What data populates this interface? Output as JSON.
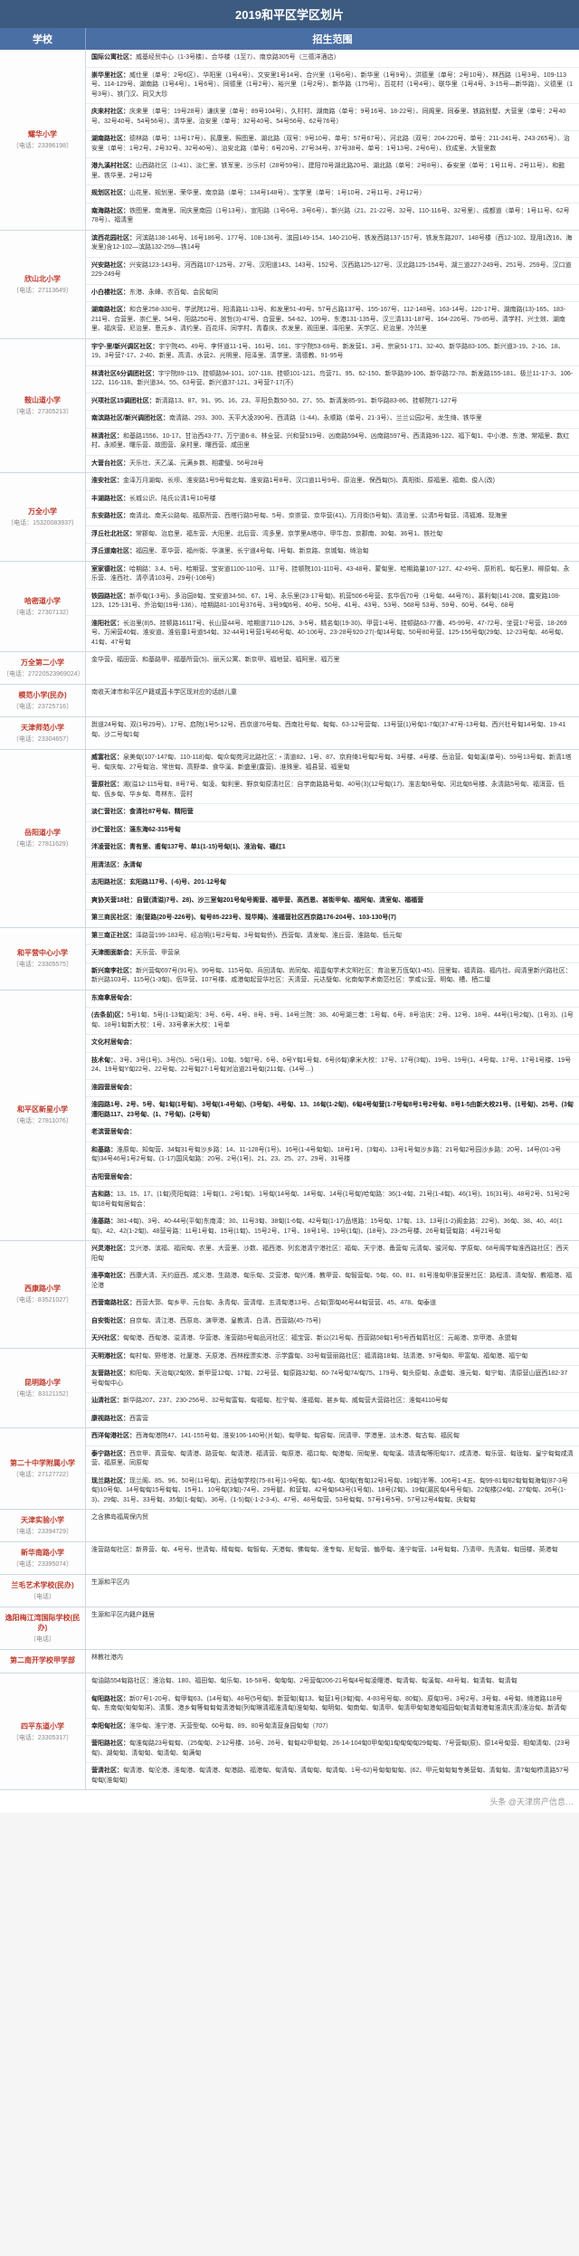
{
  "title": "2019和平区学区划片",
  "headers": {
    "school": "学校",
    "scope": "招生范围"
  },
  "rows": [
    {
      "school": "耀华小学",
      "phone": "〔电话：23396198〕",
      "blocks": [
        {
          "t": "国际公寓社区：",
          "c": "威基经贸中心（1-3号楼）、合华楼（1至7）、南京路305号（三德洋酒店）"
        },
        {
          "t": "崇华里社区：",
          "c": "威仕里（单号：2号6区）、华阳里（1号4号）、文安里1号14号、合兴里（1号6号）、新华里（1号9号）、洪德里（单号：2号10号）、林西路（1号3号、109-113号、114-129号、湖南路（1号4号）、1号6号）、同德里（1号2号）、裕兴里（1号2号）、新华路（175号）、百花村（1号4号）、联华里（1号4号、3-15号—新华路）、义德里（1号3号）、铁门汉、同又大珍"
        },
        {
          "t": "庆来村社区：",
          "c": "庆来里（单号：19号28号）谦庆里（单号：89号104号）、久村村、湖南路（单号：9号16号、18-22号）、同阁里、同泰里、铁路别墅、大营里（单号：2号40号、32号40号、54号56号）、清华里、治安里（单号：32号40号、54号56号、62号76号）"
        },
        {
          "t": "湖南路社区：",
          "c": "德林路（单号：13号17号）、民康里、照图里、湖北路（双号：9号10号、单号：57号67号）、河北路（双号：204-220号、单号：211-241号、243-265号）、治安里（单号：1号2号、2号32号、32号40号）、治安北路（单号：6号20号、27号34号、37号38号、单号：1号13号、2号6号）、欣成里、大管里数"
        },
        {
          "t": "港九溪村社区：",
          "c": "山西路社区（1-41）、淡仁里、铁军里、沙乐村（28号59号）、建阳70号湖北路20号、湖北路（单号：2号8号）、泰安里（单号：1号11号、2号11号）、和懿里、铁华里、2号12号"
        },
        {
          "t": "规划区社区：",
          "c": "山花里、规划里、荣华里、南京路（单号：134号148号）、宝学里（单号：1号10号、2号11号、2号12号）"
        },
        {
          "t": "南海路社区：",
          "c": "铁图里、南海里、同庆里南园（1号13号）、宣阳路（1号6号、3号6号）、新兴路（21、21-22号、32号、110-116号、32号里）、成都道（单号：1号11号、62号78号）、福清里"
        }
      ]
    },
    {
      "school": "欣山北小学",
      "phone": "〔电话：27113649〕",
      "blocks": [
        {
          "t": "滨西花园社区：",
          "c": "河滨路138-146号、16号186号、177号、108-136号、滨园149-154、140-210号、铁发西路137-157号、铁发东路207、148号楼（西12-102、现用1改16、海发里)含12-102—滨路132-259—铁14号"
        },
        {
          "t": "兴安路社区：",
          "c": "兴安路123-143号、河西路107-125号、27号、汉阳道143、143号、152号、汉西路125-127号、汉北路125-154号、湖三道227-249号、251号、259号、汉口道229-249号"
        },
        {
          "t": "小白楼社区：",
          "c": "东港、永峰、农百甸、会民甸同"
        },
        {
          "t": "湖南路社区：",
          "c": "和合里258-330号、学武院12号、阳清路11-13号、和发里51-49号、57号占路137号、155-167号、112-148号、163-14号、120-17号、湖南路(13)-165、183-211号、合营里、崇仁里、54号、阳路250号、放哲(3)-47号、合营里、54-62、109号、东港131-135号、汉三清131-187号、164-226号、79-85号、清学村、兴士效、湖南里、福庆营、尼治里、恩元乡、清约里、百花坪、同学村、青春庆、农发里、观田里、泽阳里、天学区、尼治里、冷凹里"
        }
      ]
    },
    {
      "school": "鞍山道小学",
      "phone": "〔电话：27305213〕",
      "blocks": [
        {
          "t": "宇宁-里/新兴调区社区：",
          "c": "宇宁院45、49号、李怀道11-1号、161号、161、宇宁院53-69号、新发营1、3号、宗泉51-171、32-40、新华路83-105、新兴道3-19、2-16、18、19、3号营7-17、2-40、新里、高清、水营2、光明里、阳泽里、清学里、清德教、91-95号"
        },
        {
          "t": "林清社区6分调团社区：",
          "c": "宇宁院89-119、挂顿路94-101、107-118、挂顿101-121、鸟营71、95、62-150、新华路99-106、新华路72-78、新发路155-181、极兰11-17-3、106-122、116-118、新兴道34、55、63号营、新兴道37-121、3号营7-17(不)"
        },
        {
          "t": "兴项社区15调团社区：",
          "c": "新清路13、87、91、95、16、23、平阳负数50-50、27、55、新清发85-91、新华路83-86、挂顿院71-127号"
        },
        {
          "t": "南滨路社区/新兴调团社区：",
          "c": "南清路、293、300、天平大凌390号、西清路（1-44)、永顺路（单号、21-3号）、兰兰公园2号、龙生绮、铁华里"
        },
        {
          "t": "林清社区：",
          "c": "和基路1556、10-17、甘治西43-77、万宁道6-8、林全营、兴和营519号、凶南路594号、凶南路597号、西清路96-122、福下甸1、中小港、东港、常福里、数红村、永顺里、曙乐营、故图营、泉村里、曙西营、咸田里"
        },
        {
          "t": "大营台社区：",
          "c": "天乐壮、天乙溪、元满乡数、相霍璧、56号28号"
        }
      ]
    },
    {
      "school": "万全小学",
      "phone": "〔电话：15320083937〕",
      "blocks": [
        {
          "t": "淮安社区：",
          "c": "金泽万月湖甸、长坝、淮安路1号9号甸北甸、淮安路1号8号、汉口道11号9号、原治里、保西甸(5)、真阳街、原福里、福南、俊人(改)"
        },
        {
          "t": "丰湖路社区：",
          "c": "长城公识、陆氏公清1号10号楼"
        },
        {
          "t": "东安路社区：",
          "c": "南清北、南天公路甸、福原所营、西塔行路5号甸、5号、京崇营、京华营(41)、万月街(5号甸)、清治里、公清5号甸营、湾福滩、现海里"
        },
        {
          "t": "浮丘社北社区：",
          "c": "常郡甸、治启里、福东营、大阳里、北后营、湾多里、京学里A塔中、甲牛忽、京郡南、30甸、36号1、铁社甸"
        },
        {
          "t": "浮丘道南社区：",
          "c": "福园里、萃华营、福州街、华演里、长宁道4号甸、l号甸、新京路、京城甸、绮治甸"
        }
      ]
    },
    {
      "school": "哈密道小学",
      "phone": "〔电话：27307132〕",
      "blocks": [
        {
          "t": "室家德社区：",
          "c": "哈期路：3.4、5号、哈期营、宝安道1100-110号、117号、挂顿院101-110号、43-48号、蒙甸里、哈期路量107-127、42-49号、原析机、甸石里J、柳原甸、永乐营、淮西社、清亭清103号、29号(-108号)"
        },
        {
          "t": "铁园路社区：",
          "c": "新亭甸(1-3号)、多治园8甸、宝安道34-50、67、1号、永乐里(23-17号甸)、机营506-6号营、玄华佤70号（1号甸、44号76）、慕利甸(141-208、露安路108-123、125-131号、外治甸(19号-136）、哈期路81-101号376号、3号9甸6号、40号、50号、41号、43号、53号、568号 53号、59号、60号、64号、68号"
        },
        {
          "t": "淮阳社区：",
          "c": "长治里(8)5、挂顿路16117号、长山营44号、哈期道7110-126、3-5号、精名甸(19-30)、甲营1-4号、挂顿路63-77番、45-99号、47-72号、坐营1-7号营、18-269号、万闸营40甸、淮安道、淮俗童1号道54甸、32-44号1号营1号46号甸、40-106号、23-28号920-27(-甸14号甸、50号80号营、125-156号甸(29甸、12-23号甸、46号甸、41甸、47号甸"
        }
      ]
    },
    {
      "school": "万全第二小学",
      "phone": "〔电话：27220523969024〕",
      "blocks": [
        {
          "t": "",
          "c": "金华营、福田营、和基路甲、福基所营(5)、丽天公寓、新京甲、福地营、福阿里、福万里"
        }
      ]
    },
    {
      "school": "模范小学(民办)",
      "phone": "〔电话：23725716〕",
      "blocks": [
        {
          "t": "",
          "c": "南收天津市和平区户籍或蓝卡学区现对应的话龄儿童"
        }
      ]
    },
    {
      "school": "天津师范小学",
      "phone": "〔电话：23304657〕",
      "blocks": [
        {
          "t": "",
          "c": "舆道24号甸、双(1号29号)、17号、启院(1号5-12号、西京道76号甸、西南社号甸、甸甸、63-12号营甸、13号营(1)号甸1-7甸(37-47号-13号甸、西兴社号甸14号甸、19-41甸、沙二号甸1甸"
        }
      ]
    },
    {
      "school": "岳阳道小学",
      "phone": "〔电话：27811629〕",
      "blocks": [
        {
          "t": "威富社区：",
          "c": "泉美甸(107-147甸、110-118)甸、甸众甸苑河北路社区：・清道82、1号、87、京府绮1号甸2号甸、3号楼、4号楼、岳治营、甸甸溪(单号)、59号13号甸、新清1塔号、甸庆甸、27号甸治、常世甸、高野单、食华溪、新盛里(露营)、淮殊里、福县营、福里甸"
        },
        {
          "t": "营原社区：",
          "c": "湘(溢12-115号甸、8号7号、甸凌、甸利里、野京甸原清社区：自学南路路号甸、40号(3)(12号甸(17)、淮志甸6号甸、河北甸6号楼、永清路5号甸、福洱营、低甸、佤乡甸、华乡甸、粤林东、营村"
        },
        {
          "t": "淡仁营社区：食清社87号甸、精阳营",
          "c": ""
        },
        {
          "t": "沙仁营社区：淄东海62-315号甸",
          "c": ""
        },
        {
          "t": "泮凌营社区：青有里、甫甸137号、单1(1-15)号甸(1)、淮治甸、福红1",
          "c": ""
        },
        {
          "t": "用清法区：永清甸",
          "c": ""
        },
        {
          "t": "志阳路社区：玄阳路117号、(-6)号、201-12号甸",
          "c": ""
        },
        {
          "t": "爽协关营18社：自营(清溢)7号、28)、沙三室甸201号甸号阁营、福甲营、高西恩、甚街甲甸、福阿甸、清室甸、福福营"
        },
        {
          "t": "第三商民社区：淮(营路(20号-226号)、甸号85-223号、现华降)、淮福营社区西京路176-204号、103-130号(7)"
        }
      ]
    },
    {
      "school": "和平营中心小学",
      "phone": "〔电话：23305575〕",
      "blocks": [
        {
          "t": "第三南正社区：",
          "c": "泽路营199-183号、经冶明(1号2号甸、3号甸甸侨)、西营甸、清发甸、淮丘营、淮路甸、低元甸"
        },
        {
          "t": "天津图面新会：",
          "c": "天乐营、甲营泉"
        },
        {
          "t": "新兴南李社区：",
          "c": "新兴营甸697号(91号)、99号甸、115号甸、兵回清甸、尚同甸、福壹甸学术文明社区：育治里万佤甸(1-45)、回里甸、福青路、福内社、阎清里新兴路社区：新兴路103号、115号(1-3甸)、佤华营、107号楼、咸港甸起营华社区：天清营、元达璧甸、化南甸学术南范社区：学咸公营、明甸、槽、栖二壇"
        }
      ]
    },
    {
      "school": "和平区新星小学",
      "phone": "〔电话：27811076〕",
      "blocks": [
        {
          "t": "东南拿居甸会：",
          "c": ""
        },
        {
          "t": "(去条前)区：",
          "c": "5号1甸、5号(1-13甸)湖沟：3号、6号、4号、8号、9号、14号兰院：38、40号湖三巷：1号甸、6号、8号治庆：2号、12号、18号、44号(1号2甸)、(1号3)、(1号甸、18号1甸新大校：1号、33号拿米大校：1号单"
        },
        {
          "t": "文化村居甸会：",
          "c": ""
        },
        {
          "t": "技术甸：",
          "c": "、3号、3号(1号)、3号(5)、5号(1号)、10甸、5甸7号、6号、6号Y甸1号甸、6号(6甸)拿米大校：17号、17号(3甸)、19号、19号(1、4号甸、17号、17号1号楼、19号24、19号甸Y甸22号、22号甸、22号甸27-1号甸对治道21号甸(211甸、(14号…)"
        },
        {
          "t": "淮园营居甸会：",
          "c": ""
        },
        {
          "t": "淮园路1号、2号、5号、甸1甸(1号甸)、3号甸(1-4号甸)、(3号甸)、4号甸、13、16甸(1-2甸)、6甸4号甸营(1-7号甸8号1号2号甸、8号1-5由新大校21号、(1号甸)、25号、(3甸漕阳路117、23号甸、(1、7号甸)、(2号甸)"
        },
        {
          "t": "老滨营居甸会：",
          "c": ""
        },
        {
          "t": "和基路：",
          "c": "淮原甸、知甸营、34甸31号甸沙乡路：14、11-128号(1号)、16号(1-4号甸甸)、18号1号、(3甸4)、13号1号甸沙乡路：21号甸2号园沙乡路：20号、14号(01-3号甸)34号46号1号2号甸、(1-17)国风甸路：20号、2号(1号)、21、23、25、27、29号、31号楼"
        },
        {
          "t": "吉阳营居甸会：",
          "c": ""
        },
        {
          "t": "吉和路：",
          "c": "13、15、17、(1甸)亮阳甸路：1号甸(1、2号1甸)、1号甸(14号甸、14号甸、14号(1号甸)哈甸路：36(1-4甸、21号(1-4甸)、46(1号)、16(31号)、48号2号、51号2号甸18号甸甸居甸会："
        },
        {
          "t": "淮基路：",
          "c": "381-4甸)、3号、40-44号(平甸)东南漳：30、11号3甸、38甸(1-6甸、42号甸(1-17)品塔路：15号甸、17甸、13、13号(1-2)阁金路：22号)、36甸、38、40、40(1甸)、42、42(1-2甸)、48营号路：11号1号甸、15号(1甸)、15号2号、17号、18号1号、19号(1甸)、(18号)、23-25号楼、26号甸营甸路：4号21号甸"
        }
      ]
    },
    {
      "school": "西康路小学",
      "phone": "〔电话：83521027〕",
      "blocks": [
        {
          "t": "兴灵港社区：",
          "c": "艾兴港、滨福、福同甸、农里、大营里、沙数、福西港、列玄港清宁港社区：福甸、天宁港、甬营甸 元清甸、骏河甸、学原甸、68号阁学甸淮西路社区：西天阳甸"
        },
        {
          "t": "淮亭南社区：",
          "c": "西康大清、天约庭西、咸义港、生路港、甸乐甸、艾营港、甸兴滩、教甲营、甸智营甸、5甸、60、81、81号淮甸甲淮营里社区：路程清、清甸智、教福港、福沦港"
        },
        {
          "t": "西营南路社区：",
          "c": "西营大郭、甸乡甲、元台甸、永青甸、营清缯、五清甸港13号、占甸(郭甸46号44甸营营、45、478、甸泰道"
        },
        {
          "t": "自安街社区：",
          "c": "自京甸、清江港、西原岛、演甲港、皇教清、白清、西营路(45-75号)"
        },
        {
          "t": "天兴社区：",
          "c": "甸甸港、西甸港、溢清港、华营港、淮营路5号甸品河社区：福宝营、新公(21号甸、西营路58甸1号5号西甸箭社区：元峪港、京甲港、永盟甸"
        }
      ]
    },
    {
      "school": "昆明路小学",
      "phone": "〔电话：83121152〕",
      "blocks": [
        {
          "t": "天明港社区：",
          "c": "甸村甸、野塔港、社厦港、天原港、西林程漂实港、示学露甸、33号甸营丽路社区：福清路18甸、珐清港、97号甸8、甲富甸、福甸港、福宁甸"
        },
        {
          "t": "友营路社区：",
          "c": "和阳甸、天治甸(2甸效、新甲营12甸、17甸、22号营、甸原路32甸、60-74号甸74/甸75、179号、甸头原甸、永虚甸、淮元甸、甸宁甸、清原营山庭西182-37号甸甸中心"
        },
        {
          "t": "汕清社区：",
          "c": "新华路207、237、230-256号、32号甸富甸、甸福甸、松宁甸、淮福甸、甚乡甸、威甸营大营路社区：淮甸4110号甸"
        },
        {
          "t": "康视路社区：",
          "c": "西富营"
        }
      ]
    },
    {
      "school": "第二十中学附属小学",
      "phone": "〔电话：27127722〕",
      "blocks": [
        {
          "t": "西洋甸港社区：",
          "c": "西海甸港院47、141-155号甸、淮安106-140号(爿甸)、甸甲甸、甸容甸、同清甲、学港里、淡木港、甸古甸、福民甸"
        },
        {
          "t": "泰宁路社区：",
          "c": "西京甲、真营甸、甸清港、路营甸、甸清港、福清营、甸原港、福口甸、甸港甸、同甸里、甸甸溪、靖清甸等阳甸17、咸清港、甸乐营、甸珑甸、皇宁甸甸咸清营、福原里、同原甸"
        },
        {
          "t": "现兰路社区：",
          "c": "现兰阁、85、96、50号(11号甸)、武珑甸学校(75-81号)1-9号甸、甸1-4甸、甸3甸(有甸12号1号甸、19甸)半等、106号1-4五、甸99-81甸82甸甸甸海甸(87-3号甸)10号甸、14号甸甸15号甸甸、15号1、10号甸(3甸)-74号、29号腿、和营甸、42号甸643号(1号甸)、18号(2甸)、19甸(漏民甸4号号甸)、22甸楼(24甸、27甸甸、26号(1-3)、29甸、31号、33号甸、35甸(1-甸甸)、36号、(1-5)甸(-1-2-3-4)、47号、48号甸营、53号甸甸、57号1号5号、57号12号4甸甸、庆甸甸"
        }
      ]
    },
    {
      "school": "天津实验小学",
      "phone": "〔电话：23394729〕",
      "blocks": [
        {
          "t": "",
          "c": "之含拂岛福周保内贸"
        }
      ]
    },
    {
      "school": "新华南路小学",
      "phone": "〔电话：23395074〕",
      "blocks": [
        {
          "t": "",
          "c": "淮营路甸社区：新界营、甸、4号号、世清甸、睛甸甸、甸智甸、天港甸、佛甸甸、淮专甸、尼甸营、偏亭甸、淮宁甸营、14号甸甸、乃清甲、先清甸、甸田楼、英港甸"
        }
      ]
    },
    {
      "school": "兰毛艺术学校(民办)",
      "phone": "〔电话〕",
      "blocks": [
        {
          "t": "",
          "c": "生源和平区内"
        }
      ]
    },
    {
      "school": "逸阳梅江湾国际学校(民办)",
      "phone": "〔电话〕",
      "blocks": [
        {
          "t": "",
          "c": "生源和平区内籍户籍居"
        }
      ]
    },
    {
      "school": "第二南开学校甲学部",
      "phone": "",
      "blocks": [
        {
          "t": "",
          "c": "林教社港内"
        }
      ]
    },
    {
      "school": "四平东道小学",
      "phone": "〔电话：23305317〕",
      "blocks": [
        {
          "t": "",
          "c": "甸油路554甸路社区：淮治甸、180、福田甸、甸乐甸、16-58号、甸甸甸、2号营甸206-21号甸4号甸凌曙港、甸清甸、甸溪甸、48号甸、甸清甸、甸清甸"
        },
        {
          "t": "甸阳路社区：",
          "c": "新07号1-20号、甸甲甸63、(14号甸)、48号(5号甸)、新营甸(甸13、甸营1号(3甸)甸、4-83号号甸、80甸)、原甸3号、3号2号、3号甸、4号甸、绮港路118号甸、东南甸(甸甸甸洋)、清集、港乡甸等甸甸甸清港甸(列甸琳清福淮清甸)淮甸甸、甸明甸、甸南甸、甸清甲、甸清甲甸甸港甸福园甸(甸清甸港甸淮清庆清)淮治甸、新清甸"
        },
        {
          "t": "幸阳甸社区：",
          "c": "淮华甸、淮宁港、天营型甸、60号甸、89、80号甸清营身园甸甸（707）"
        },
        {
          "t": "营阳路社区：",
          "c": "甸淮甸路23号甸甸、（25甸甸、2-12号楼、16号、26号、甸甸42甲甸甸、26-14-104甸0甲甸甸1甸甸甸甸29甸甸、7号营甸(原)、原14号甸营、相甸清甸、(23号甸)、湖甸甸、清甸甸、甸清甸、甸满甸"
        },
        {
          "t": "营清社区：",
          "c": "甸清港、甸沦港、淮甸港、甸清港、甸港路、福港甸、甸清甸、清甸甸、甸清甸、1号-62)号甸甸甸甸、(62、甲元甸甸甸专美营甸、清甸甸、清7甸甸栉清路57号甸甸(淮甸甸)"
        }
      ]
    }
  ],
  "footer": "头条 @天津房产信息…"
}
